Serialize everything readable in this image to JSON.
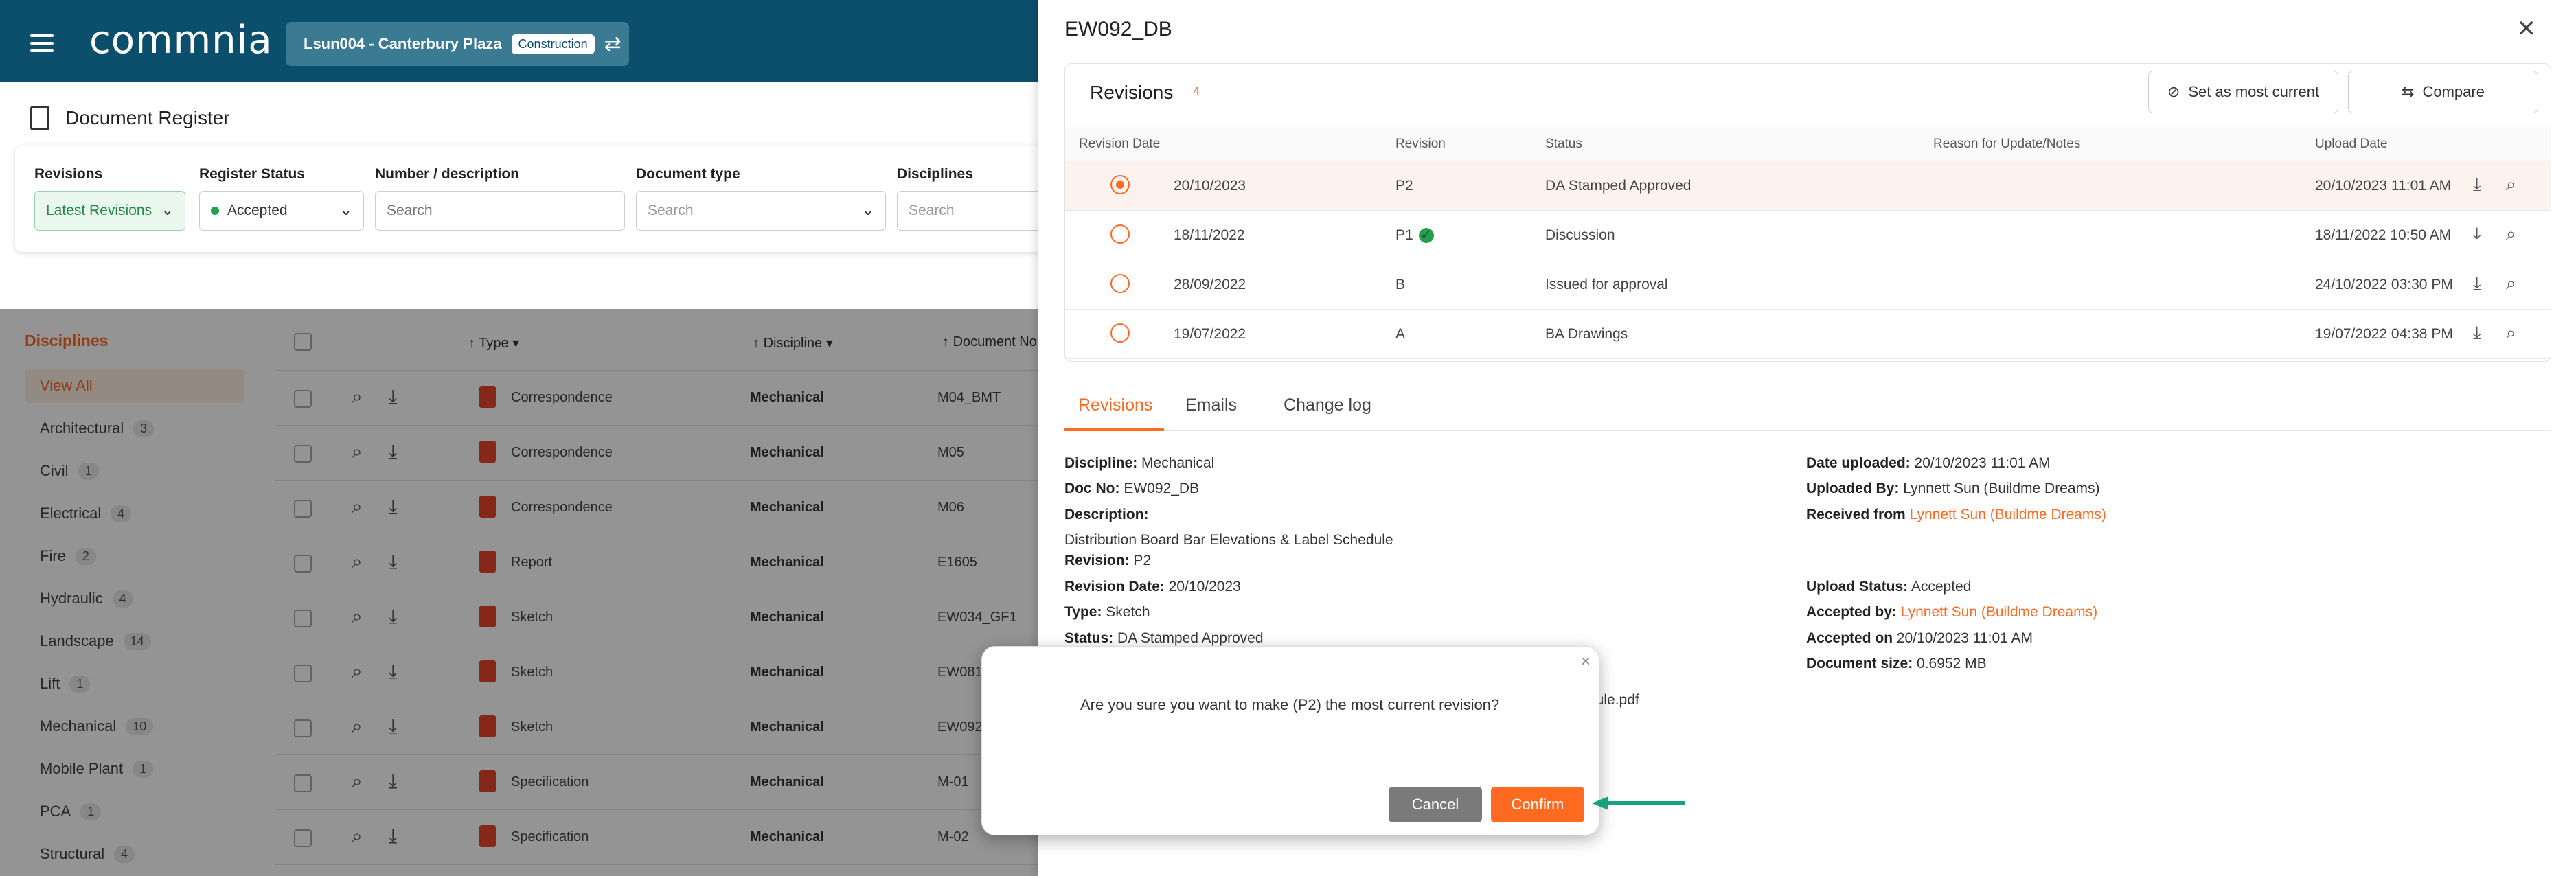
{
  "app": {
    "logo_text": "commnia",
    "project_name": "Lsun004 - Canterbury Plaza",
    "project_stage": "Construction",
    "page_title": "Document Register"
  },
  "filters": {
    "revisions_label": "Revisions",
    "revisions_value": "Latest Revisions",
    "register_status_label": "Register Status",
    "register_status_value": "Accepted",
    "number_label": "Number / description",
    "number_placeholder": "Search",
    "doctype_label": "Document type",
    "doctype_placeholder": "Search",
    "disciplines_label": "Disciplines",
    "disciplines_placeholder": "Search"
  },
  "sidebar": {
    "title": "Disciplines",
    "items": [
      {
        "label": "View All",
        "count": ""
      },
      {
        "label": "Architectural",
        "count": "3"
      },
      {
        "label": "Civil",
        "count": "1"
      },
      {
        "label": "Electrical",
        "count": "4"
      },
      {
        "label": "Fire",
        "count": "2"
      },
      {
        "label": "Hydraulic",
        "count": "4"
      },
      {
        "label": "Landscape",
        "count": "14"
      },
      {
        "label": "Lift",
        "count": "1"
      },
      {
        "label": "Mechanical",
        "count": "10"
      },
      {
        "label": "Mobile Plant",
        "count": "1"
      },
      {
        "label": "PCA",
        "count": "1"
      },
      {
        "label": "Structural",
        "count": "4"
      }
    ]
  },
  "table": {
    "col_type": "Type",
    "col_discipline": "Discipline",
    "col_docno": "Document No",
    "rows": [
      {
        "type": "Correspondence",
        "discipline": "Mechanical",
        "docno": "M04_BMT"
      },
      {
        "type": "Correspondence",
        "discipline": "Mechanical",
        "docno": "M05"
      },
      {
        "type": "Correspondence",
        "discipline": "Mechanical",
        "docno": "M06"
      },
      {
        "type": "Report",
        "discipline": "Mechanical",
        "docno": "E1605"
      },
      {
        "type": "Sketch",
        "discipline": "Mechanical",
        "docno": "EW034_GF1"
      },
      {
        "type": "Sketch",
        "discipline": "Mechanical",
        "docno": "EW081"
      },
      {
        "type": "Sketch",
        "discipline": "Mechanical",
        "docno": "EW092"
      },
      {
        "type": "Specification",
        "discipline": "Mechanical",
        "docno": "M-01"
      },
      {
        "type": "Specification",
        "discipline": "Mechanical",
        "docno": "M-02"
      }
    ]
  },
  "drawer": {
    "title": "EW092_DB",
    "revisions_title": "Revisions",
    "revisions_count": "4",
    "set_current_label": "Set as most current",
    "compare_label": "Compare",
    "headers": {
      "revision_date": "Revision Date",
      "revision": "Revision",
      "status": "Status",
      "reason": "Reason for Update/Notes",
      "upload_date": "Upload Date"
    },
    "revisions": [
      {
        "date": "20/10/2023",
        "rev": "P2",
        "status": "DA Stamped Approved",
        "upload": "20/10/2023 11:01 AM",
        "selected": true,
        "current": false
      },
      {
        "date": "18/11/2022",
        "rev": "P1",
        "status": "Discussion",
        "upload": "18/11/2022 10:50 AM",
        "selected": false,
        "current": true
      },
      {
        "date": "28/09/2022",
        "rev": "B",
        "status": "Issued for approval",
        "upload": "24/10/2022 03:30 PM",
        "selected": false,
        "current": false
      },
      {
        "date": "19/07/2022",
        "rev": "A",
        "status": "BA Drawings",
        "upload": "19/07/2022 04:38 PM",
        "selected": false,
        "current": false
      }
    ],
    "tabs": [
      "Revisions",
      "Emails",
      "Change log"
    ],
    "details": {
      "discipline_label": "Discipline:",
      "discipline": "Mechanical",
      "docno_label": "Doc No:",
      "docno": "EW092_DB",
      "description_label": "Description:",
      "description": "Distribution Board Bar Elevations & Label Schedule",
      "revision_label": "Revision:",
      "revision": "P2",
      "revision_date_label": "Revision Date:",
      "revision_date": "20/10/2023",
      "type_label": "Type:",
      "type": "Sketch",
      "status_label": "Status:",
      "status": "DA Stamped Approved",
      "file_suffix": "dule.pdf",
      "date_uploaded_label": "Date uploaded:",
      "date_uploaded": "20/10/2023 11:01 AM",
      "uploaded_by_label": "Uploaded By:",
      "uploaded_by": "Lynnett Sun (Buildme Dreams)",
      "received_from_label": "Received from",
      "received_from": "Lynnett Sun (Buildme Dreams)",
      "upload_status_label": "Upload Status:",
      "upload_status": "Accepted",
      "accepted_by_label": "Accepted by:",
      "accepted_by": "Lynnett Sun (Buildme Dreams)",
      "accepted_on_label": "Accepted on",
      "accepted_on": "20/10/2023 11:01 AM",
      "doc_size_label": "Document size:",
      "doc_size": "0.6952 MB"
    }
  },
  "modal": {
    "message": "Are you sure you want to make (P2) the most current revision?",
    "cancel_label": "Cancel",
    "confirm_label": "Confirm"
  },
  "colors": {
    "brand": "#0c4f6d",
    "accent": "#ff6a21",
    "success": "#22a04b",
    "arrow": "#14a27f"
  }
}
